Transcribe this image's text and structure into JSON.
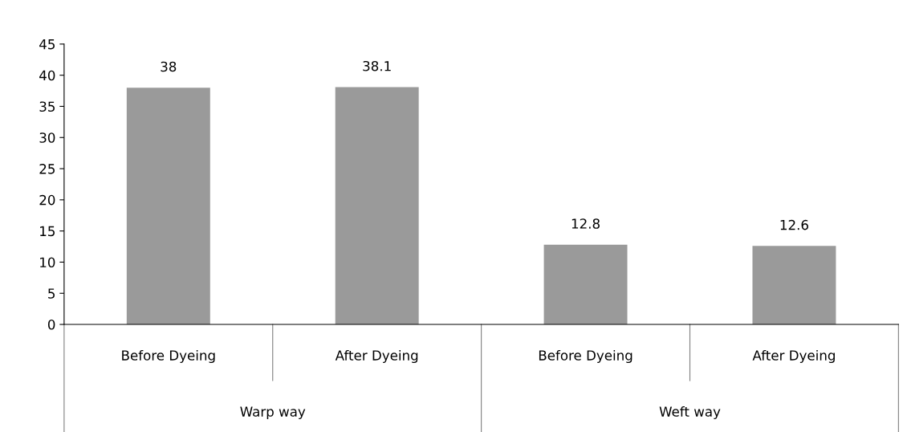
{
  "chart_data": {
    "type": "bar",
    "categories": [
      "Before Dyeing",
      "After Dyeing",
      "Before Dyeing",
      "After Dyeing"
    ],
    "values": [
      38,
      38.1,
      12.8,
      12.6
    ],
    "color": "#9a9a9a",
    "ylim": [
      0,
      45
    ],
    "yticks": [
      0,
      5,
      10,
      15,
      20,
      25,
      30,
      35,
      40,
      45
    ],
    "data_labels": true,
    "grid": false,
    "legend": false,
    "annotations": [
      "Warp way",
      "Weft way"
    ]
  }
}
